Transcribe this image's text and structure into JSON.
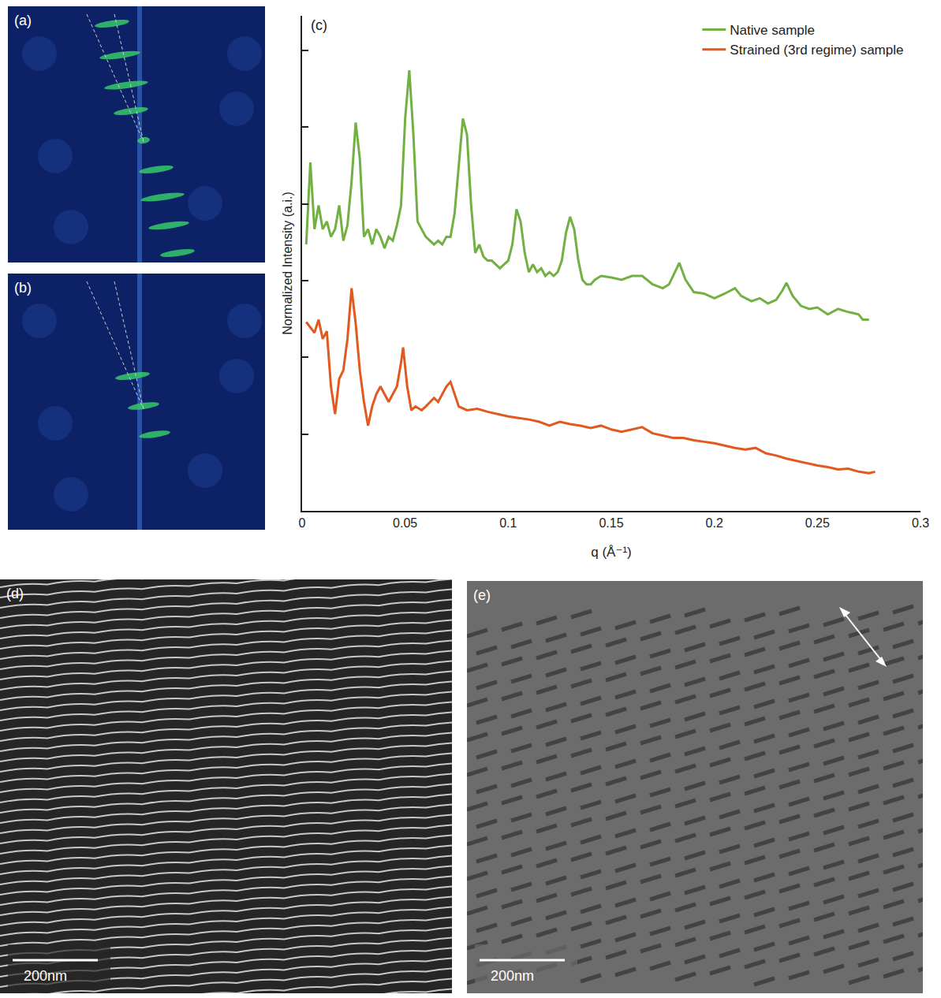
{
  "chart_data": {
    "type": "line",
    "panel_label": "(c)",
    "x_label": "q (Å⁻¹)",
    "y_label": "Normalized Intensity (a.i.)",
    "xlim": [
      0,
      0.3
    ],
    "xticks": [
      0,
      0.05,
      0.1,
      0.15,
      0.2,
      0.25,
      0.3
    ],
    "ylim": [
      0,
      6.45
    ],
    "yticks": [
      1,
      2,
      3,
      4,
      5,
      6
    ],
    "tick_labels": "x",
    "grid": false,
    "legend": "top right",
    "series": [
      {
        "name": "Native sample",
        "color": "#72b043",
        "x": [
          0.002,
          0.004,
          0.006,
          0.008,
          0.01,
          0.012,
          0.014,
          0.016,
          0.018,
          0.02,
          0.022,
          0.024,
          0.026,
          0.028,
          0.03,
          0.032,
          0.034,
          0.036,
          0.038,
          0.04,
          0.042,
          0.044,
          0.046,
          0.048,
          0.05,
          0.052,
          0.054,
          0.056,
          0.058,
          0.06,
          0.062,
          0.064,
          0.066,
          0.068,
          0.07,
          0.072,
          0.074,
          0.076,
          0.078,
          0.08,
          0.082,
          0.084,
          0.086,
          0.088,
          0.09,
          0.092,
          0.094,
          0.096,
          0.098,
          0.1,
          0.102,
          0.104,
          0.106,
          0.108,
          0.11,
          0.112,
          0.114,
          0.116,
          0.118,
          0.12,
          0.122,
          0.124,
          0.126,
          0.128,
          0.13,
          0.132,
          0.134,
          0.136,
          0.138,
          0.14,
          0.142,
          0.145,
          0.15,
          0.155,
          0.16,
          0.165,
          0.17,
          0.175,
          0.178,
          0.181,
          0.183,
          0.186,
          0.19,
          0.195,
          0.2,
          0.205,
          0.21,
          0.213,
          0.218,
          0.222,
          0.226,
          0.23,
          0.233,
          0.235,
          0.238,
          0.242,
          0.246,
          0.25,
          0.255,
          0.26,
          0.265,
          0.27,
          0.272,
          0.275
        ],
        "values": [
          3.47,
          4.54,
          3.67,
          3.98,
          3.67,
          3.77,
          3.57,
          3.67,
          3.98,
          3.52,
          3.72,
          4.29,
          5.06,
          4.59,
          3.57,
          3.67,
          3.47,
          3.67,
          3.57,
          3.42,
          3.57,
          3.52,
          3.72,
          3.98,
          5.11,
          5.74,
          4.9,
          3.77,
          3.67,
          3.57,
          3.52,
          3.47,
          3.52,
          3.47,
          3.57,
          3.57,
          3.88,
          4.49,
          5.11,
          4.9,
          3.98,
          3.36,
          3.47,
          3.31,
          3.26,
          3.26,
          3.21,
          3.16,
          3.21,
          3.26,
          3.47,
          3.93,
          3.77,
          3.36,
          3.11,
          3.21,
          3.11,
          3.16,
          3.06,
          3.11,
          3.06,
          3.11,
          3.26,
          3.62,
          3.83,
          3.67,
          3.26,
          3.01,
          2.95,
          2.95,
          3.01,
          3.06,
          3.04,
          3.01,
          3.06,
          3.06,
          2.95,
          2.9,
          2.95,
          3.11,
          3.23,
          3.01,
          2.85,
          2.83,
          2.77,
          2.83,
          2.9,
          2.8,
          2.73,
          2.77,
          2.7,
          2.75,
          2.87,
          2.97,
          2.8,
          2.67,
          2.63,
          2.65,
          2.56,
          2.63,
          2.59,
          2.56,
          2.49,
          2.49
        ]
      },
      {
        "name": "Strained (3rd regime) sample",
        "color": "#e2591e",
        "x": [
          0.002,
          0.004,
          0.006,
          0.008,
          0.01,
          0.012,
          0.014,
          0.016,
          0.018,
          0.02,
          0.022,
          0.024,
          0.026,
          0.028,
          0.03,
          0.032,
          0.034,
          0.036,
          0.038,
          0.04,
          0.042,
          0.044,
          0.046,
          0.048,
          0.049,
          0.051,
          0.053,
          0.055,
          0.058,
          0.06,
          0.062,
          0.064,
          0.066,
          0.068,
          0.07,
          0.072,
          0.074,
          0.076,
          0.08,
          0.085,
          0.09,
          0.095,
          0.1,
          0.105,
          0.11,
          0.115,
          0.12,
          0.125,
          0.13,
          0.135,
          0.14,
          0.145,
          0.15,
          0.155,
          0.16,
          0.165,
          0.17,
          0.175,
          0.18,
          0.185,
          0.19,
          0.195,
          0.2,
          0.205,
          0.21,
          0.215,
          0.22,
          0.225,
          0.23,
          0.235,
          0.24,
          0.245,
          0.25,
          0.255,
          0.26,
          0.265,
          0.27,
          0.275,
          0.278
        ],
        "values": [
          2.46,
          2.39,
          2.32,
          2.49,
          2.24,
          2.34,
          1.62,
          1.26,
          1.72,
          1.83,
          2.24,
          2.9,
          2.44,
          1.83,
          1.42,
          1.11,
          1.36,
          1.52,
          1.62,
          1.52,
          1.42,
          1.52,
          1.62,
          1.93,
          2.13,
          1.62,
          1.31,
          1.36,
          1.31,
          1.36,
          1.42,
          1.47,
          1.42,
          1.52,
          1.62,
          1.68,
          1.52,
          1.36,
          1.31,
          1.33,
          1.29,
          1.26,
          1.23,
          1.21,
          1.19,
          1.16,
          1.11,
          1.16,
          1.13,
          1.11,
          1.08,
          1.11,
          1.06,
          1.03,
          1.06,
          1.09,
          1.01,
          0.98,
          0.95,
          0.95,
          0.92,
          0.9,
          0.88,
          0.85,
          0.82,
          0.8,
          0.82,
          0.75,
          0.72,
          0.68,
          0.65,
          0.62,
          0.59,
          0.57,
          0.54,
          0.55,
          0.51,
          0.49,
          0.51
        ]
      }
    ]
  },
  "images": [
    {
      "label": "(a)"
    },
    {
      "label": "(b)"
    },
    {
      "label": "(d)",
      "scale_bar": "200nm"
    },
    {
      "label": "(e)",
      "scale_bar": "200nm"
    }
  ]
}
